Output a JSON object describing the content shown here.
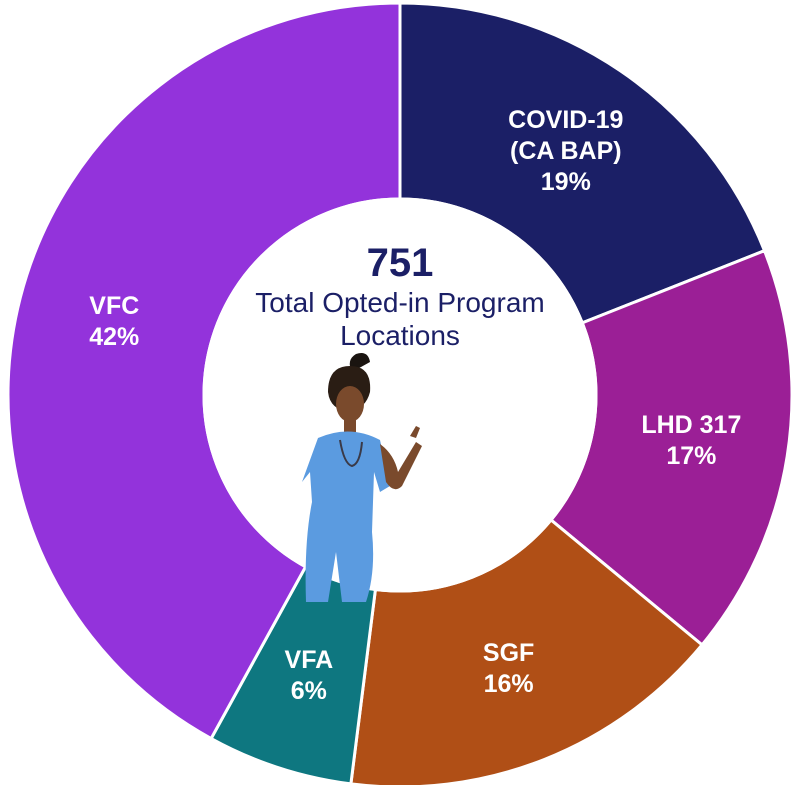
{
  "chart_data": {
    "type": "donut",
    "categories": [
      "COVID-19 (CA BAP)",
      "LHD 317",
      "SGF",
      "VFA",
      "VFC"
    ],
    "values": [
      19,
      17,
      16,
      6,
      42
    ],
    "value_labels": [
      "19%",
      "17%",
      "16%",
      "6%",
      "42%"
    ],
    "colors": [
      "#1b1f66",
      "#9b1f96",
      "#b04f16",
      "#0e7780",
      "#9333db"
    ],
    "center_value": 751,
    "center_label": "Total Opted-in Program Locations"
  }
}
